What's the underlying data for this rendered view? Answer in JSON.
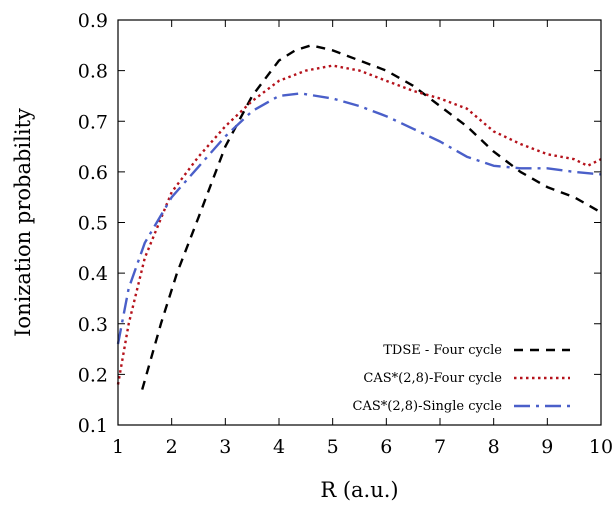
{
  "chart_data": {
    "type": "line",
    "title": "",
    "xlabel": "R (a.u.)",
    "ylabel": "Ionization probability",
    "xlim": [
      1,
      10
    ],
    "ylim": [
      0.1,
      0.9
    ],
    "xticks": [
      "1",
      "2",
      "3",
      "4",
      "5",
      "6",
      "7",
      "8",
      "9",
      "10"
    ],
    "yticks": [
      "0.1",
      "0.2",
      "0.3",
      "0.4",
      "0.5",
      "0.6",
      "0.7",
      "0.8",
      "0.9"
    ],
    "grid": false,
    "legend_position": "bottom-right",
    "series": [
      {
        "name": "TDSE - Four cycle",
        "color": "#000000",
        "dash": "dashed",
        "x": [
          1.45,
          1.8,
          2.1,
          2.5,
          3.0,
          3.5,
          4.0,
          4.3,
          4.6,
          5.0,
          5.5,
          6.0,
          6.5,
          7.0,
          7.5,
          8.0,
          8.5,
          9.0,
          9.5,
          10.0
        ],
        "y": [
          0.17,
          0.3,
          0.4,
          0.51,
          0.65,
          0.75,
          0.82,
          0.84,
          0.85,
          0.84,
          0.82,
          0.8,
          0.77,
          0.73,
          0.69,
          0.64,
          0.6,
          0.57,
          0.55,
          0.52
        ]
      },
      {
        "name": "CAS*(2,8)-Four cycle",
        "color": "#b5121b",
        "dash": "dotted",
        "x": [
          1.0,
          1.2,
          1.5,
          2.0,
          2.5,
          3.0,
          3.5,
          4.0,
          4.5,
          5.0,
          5.5,
          6.0,
          6.5,
          7.0,
          7.5,
          8.0,
          8.5,
          9.0,
          9.5,
          9.75,
          10.0
        ],
        "y": [
          0.18,
          0.3,
          0.43,
          0.56,
          0.63,
          0.69,
          0.74,
          0.78,
          0.8,
          0.81,
          0.8,
          0.78,
          0.76,
          0.745,
          0.725,
          0.68,
          0.655,
          0.635,
          0.625,
          0.612,
          0.625
        ]
      },
      {
        "name": "CAS*(2,8)-Single cycle",
        "color": "#4a5fc9",
        "dash": "dashdot",
        "x": [
          1.0,
          1.2,
          1.5,
          2.0,
          2.5,
          3.0,
          3.5,
          4.0,
          4.4,
          5.0,
          5.5,
          6.0,
          6.5,
          7.0,
          7.5,
          8.0,
          8.5,
          9.0,
          9.5,
          10.0
        ],
        "y": [
          0.26,
          0.37,
          0.46,
          0.55,
          0.61,
          0.67,
          0.72,
          0.75,
          0.755,
          0.745,
          0.73,
          0.71,
          0.685,
          0.66,
          0.63,
          0.612,
          0.607,
          0.607,
          0.6,
          0.595
        ]
      }
    ]
  }
}
